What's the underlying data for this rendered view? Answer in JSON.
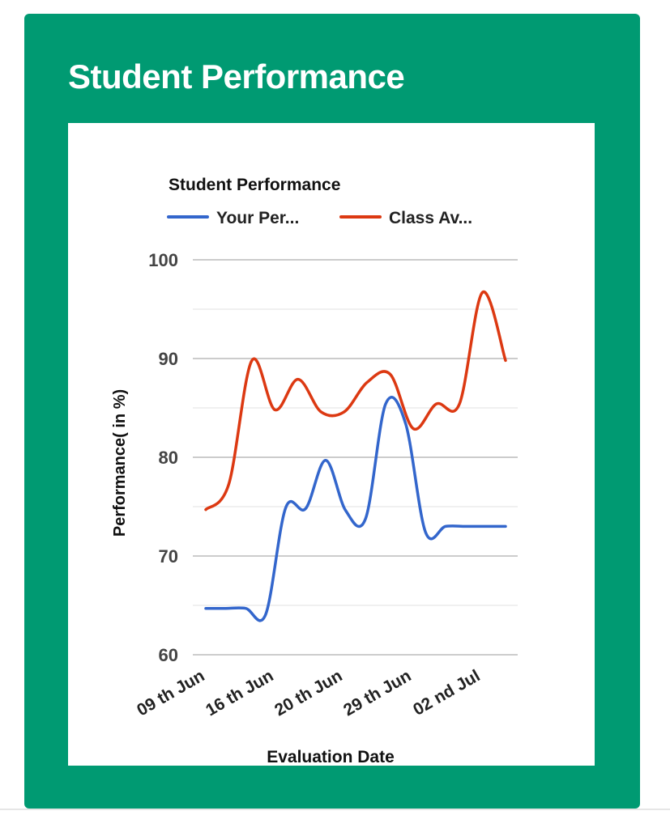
{
  "card": {
    "title": "Student Performance"
  },
  "chart_data": {
    "type": "line",
    "title": "Student Performance",
    "xlabel": "Evaluation Date",
    "ylabel": "Performance( in %)",
    "ylim": [
      60,
      100
    ],
    "yticks": [
      "100",
      "90",
      "80",
      "70",
      "60"
    ],
    "ytick_values": [
      100,
      90,
      80,
      70,
      60
    ],
    "minor_gridlines": [
      95,
      85,
      75,
      65
    ],
    "xtick_labels": [
      "09 th Jun",
      "16 th Jun",
      "20 th Jun",
      "29 th Jun",
      "02 nd Jul"
    ],
    "legend_position": "top",
    "series": [
      {
        "name": "Your Per...",
        "color": "#3366cc",
        "values": [
          64.7,
          64.7,
          64.7,
          64.1,
          74.9,
          74.8,
          79.7,
          74.6,
          73.8,
          85.4,
          83.4,
          72.4,
          73.0,
          73.0,
          73.0,
          73.0
        ]
      },
      {
        "name": "Class Av...",
        "color": "#dc3912",
        "values": [
          74.7,
          77.3,
          89.8,
          84.8,
          87.9,
          84.6,
          84.6,
          87.6,
          88.4,
          82.9,
          85.4,
          85.4,
          96.7,
          89.8
        ]
      }
    ]
  }
}
